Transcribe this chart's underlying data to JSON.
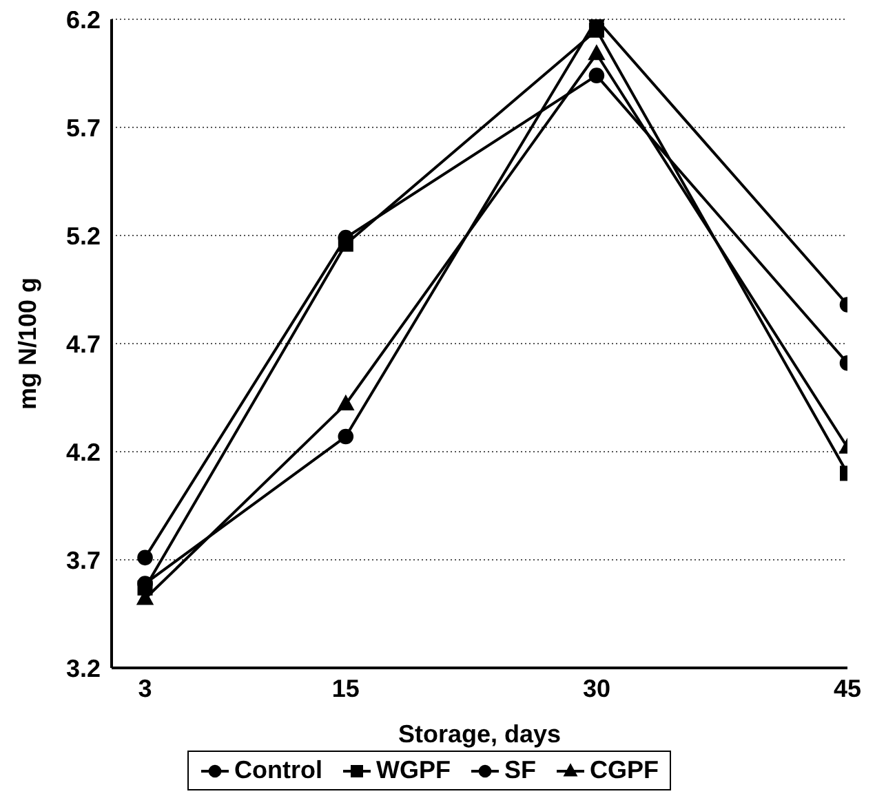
{
  "chart_data": {
    "type": "line",
    "xlabel": "Storage, days",
    "ylabel": "mg N/100 g",
    "x": [
      3,
      15,
      30,
      45
    ],
    "xlim": [
      1,
      45
    ],
    "xticks": [
      3,
      15,
      30,
      45
    ],
    "ylim": [
      3.2,
      6.2
    ],
    "yticks": [
      3.2,
      3.7,
      4.2,
      4.7,
      5.2,
      5.7,
      6.2
    ],
    "grid": "y",
    "legend": "bottom",
    "line_style": "solid",
    "series": [
      {
        "name": "Control",
        "color": "#000000",
        "marker": "circle",
        "values": [
          3.59,
          4.27,
          6.2,
          4.88
        ]
      },
      {
        "name": "WGPF",
        "color": "#000000",
        "marker": "square",
        "values": [
          3.57,
          5.16,
          6.15,
          4.1
        ]
      },
      {
        "name": "SF",
        "color": "#000000",
        "marker": "circle",
        "values": [
          3.71,
          5.19,
          5.94,
          4.61
        ]
      },
      {
        "name": "CGPF",
        "color": "#000000",
        "marker": "triangle",
        "values": [
          3.52,
          4.42,
          6.04,
          4.22
        ]
      }
    ]
  }
}
